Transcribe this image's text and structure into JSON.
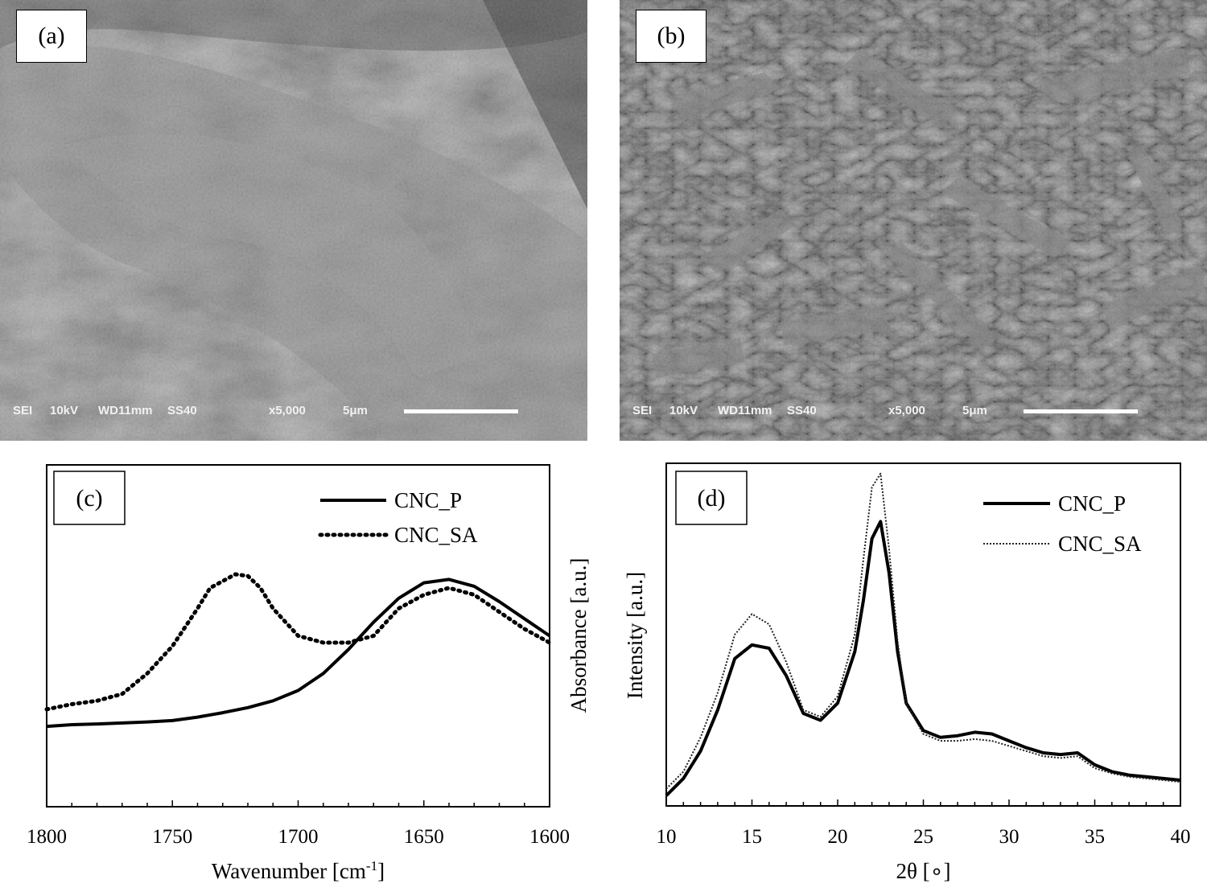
{
  "panels": {
    "a": {
      "label": "(a)",
      "info": {
        "detector": "SEI",
        "voltage": "10kV",
        "wd": "WD11mm",
        "spot": "SS40",
        "mag": "x5,000",
        "scale": "5μm"
      }
    },
    "b": {
      "label": "(b)",
      "info": {
        "detector": "SEI",
        "voltage": "10kV",
        "wd": "WD11mm",
        "spot": "SS40",
        "mag": "x5,000",
        "scale": "5μm"
      }
    }
  },
  "chart_data": [
    {
      "panel": "(c)",
      "type": "line",
      "xlabel": "Wavenumber [cm-1]",
      "xlabel_main": "Wavenumber [cm",
      "xlabel_sup": "-1",
      "xlabel_end": "]",
      "ylabel": "Absorbance [a.u.]",
      "xlim": [
        1800,
        1600
      ],
      "x_reversed": true,
      "ylim": [
        0,
        1
      ],
      "xticks": [
        1800,
        1750,
        1700,
        1650,
        1600
      ],
      "legend_position": "top-right",
      "series": [
        {
          "name": "CNC_P",
          "style": "solid",
          "x": [
            1800,
            1790,
            1780,
            1770,
            1760,
            1750,
            1740,
            1730,
            1720,
            1710,
            1700,
            1690,
            1680,
            1670,
            1660,
            1650,
            1640,
            1630,
            1620,
            1610,
            1600
          ],
          "y": [
            0.235,
            0.24,
            0.242,
            0.245,
            0.248,
            0.252,
            0.262,
            0.275,
            0.29,
            0.31,
            0.34,
            0.39,
            0.46,
            0.54,
            0.61,
            0.655,
            0.665,
            0.645,
            0.6,
            0.55,
            0.5
          ]
        },
        {
          "name": "CNC_SA",
          "style": "dotted",
          "x": [
            1800,
            1790,
            1780,
            1770,
            1760,
            1750,
            1740,
            1735,
            1730,
            1725,
            1720,
            1715,
            1710,
            1700,
            1690,
            1680,
            1670,
            1660,
            1650,
            1640,
            1630,
            1620,
            1610,
            1600
          ],
          "y": [
            0.285,
            0.3,
            0.31,
            0.33,
            0.39,
            0.47,
            0.58,
            0.64,
            0.66,
            0.68,
            0.675,
            0.64,
            0.58,
            0.5,
            0.48,
            0.48,
            0.5,
            0.58,
            0.62,
            0.64,
            0.62,
            0.57,
            0.52,
            0.48
          ]
        }
      ]
    },
    {
      "panel": "(d)",
      "type": "line",
      "xlabel": "2θ [∘]",
      "ylabel": "Intensity [a.u.]",
      "xlim": [
        10,
        40
      ],
      "ylim": [
        0,
        1
      ],
      "xticks": [
        10,
        15,
        20,
        25,
        30,
        35,
        40
      ],
      "legend_position": "top-right",
      "series": [
        {
          "name": "CNC_P",
          "style": "solid",
          "x": [
            10,
            11,
            12,
            13,
            14,
            15,
            16,
            17,
            18,
            19,
            20,
            21,
            21.5,
            22,
            22.5,
            23,
            23.5,
            24,
            25,
            26,
            27,
            28,
            29,
            30,
            31,
            32,
            33,
            34,
            35,
            36,
            37,
            38,
            39,
            40
          ],
          "y": [
            0.03,
            0.08,
            0.16,
            0.28,
            0.43,
            0.47,
            0.46,
            0.38,
            0.27,
            0.25,
            0.3,
            0.45,
            0.6,
            0.78,
            0.83,
            0.68,
            0.45,
            0.3,
            0.22,
            0.2,
            0.205,
            0.215,
            0.21,
            0.19,
            0.17,
            0.155,
            0.15,
            0.155,
            0.12,
            0.1,
            0.09,
            0.085,
            0.08,
            0.075
          ]
        },
        {
          "name": "CNC_SA",
          "style": "dotted",
          "x": [
            10,
            11,
            12,
            13,
            14,
            15,
            16,
            17,
            18,
            19,
            20,
            21,
            21.5,
            22,
            22.5,
            23,
            23.5,
            24,
            25,
            26,
            27,
            28,
            29,
            30,
            31,
            32,
            33,
            34,
            35,
            36,
            37,
            38,
            39,
            40
          ],
          "y": [
            0.05,
            0.1,
            0.2,
            0.33,
            0.5,
            0.56,
            0.53,
            0.42,
            0.28,
            0.26,
            0.32,
            0.5,
            0.72,
            0.93,
            0.97,
            0.75,
            0.48,
            0.3,
            0.21,
            0.19,
            0.19,
            0.195,
            0.19,
            0.175,
            0.16,
            0.145,
            0.14,
            0.145,
            0.11,
            0.095,
            0.085,
            0.08,
            0.075,
            0.07
          ]
        }
      ]
    }
  ]
}
